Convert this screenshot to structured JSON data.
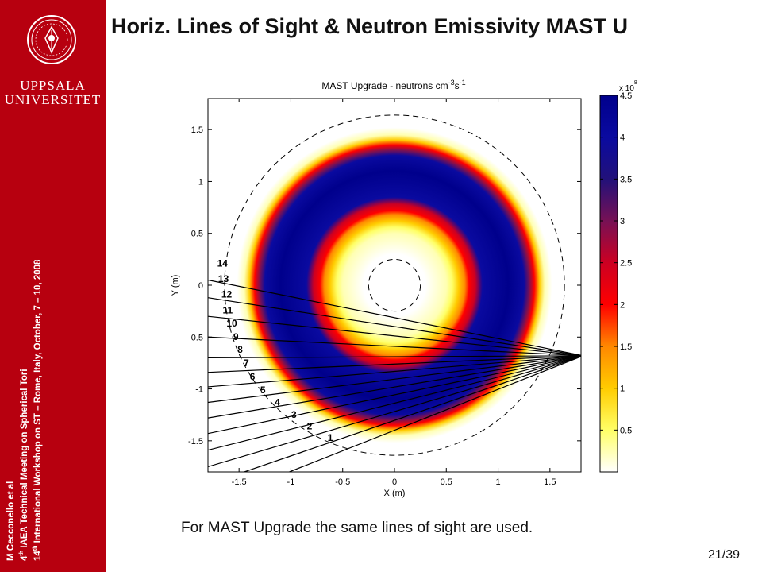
{
  "sidebar": {
    "logo_icon": "uppsala-seal-icon",
    "university_line1": "UPPSALA",
    "university_line2": "UNIVERSITET",
    "vertical_line1": "M Cecconello et al",
    "vertical_line2_num": "4",
    "vertical_line2_sup": "th",
    "vertical_line2_rest": " IAEA Technical Meeting on Spherical Tori",
    "vertical_line3_num": "14",
    "vertical_line3_sup": "th",
    "vertical_line3_rest": " International Workshop on ST – Rome, Italy, October, 7 – 10, 2008"
  },
  "slide": {
    "title": "Horiz. Lines of Sight & Neutron Emissivity MAST U",
    "caption": "For MAST Upgrade the same lines of sight are used.",
    "page_number": "21/39"
  },
  "chart_data": {
    "type": "heatmap",
    "title_main": "MAST Upgrade - neutrons cm",
    "title_exp1": "-3",
    "title_mid": "s",
    "title_exp2": "-1",
    "xlabel": "X (m)",
    "ylabel": "Y (m)",
    "xlim": [
      -1.8,
      1.8
    ],
    "ylim": [
      -1.8,
      1.8
    ],
    "xticks": [
      -1.5,
      -1,
      -0.5,
      0,
      0.5,
      1,
      1.5
    ],
    "xtick_labels": [
      "-1.5",
      "-1",
      "-0.5",
      "0",
      "0.5",
      "1",
      "1.5"
    ],
    "yticks": [
      1.5,
      1,
      0.5,
      0,
      -0.5,
      -1,
      -1.5
    ],
    "ytick_labels": [
      "1.5",
      "1",
      "0.5",
      "0",
      "-0.5",
      "-1",
      "-1.5"
    ],
    "emissivity_profile": {
      "center": [
        0,
        0
      ],
      "radius_m": [
        0.0,
        0.3,
        0.5,
        0.56,
        0.62,
        0.68,
        0.72,
        0.78,
        0.85,
        1.1,
        1.25,
        1.3,
        1.35,
        1.4,
        1.45,
        1.52
      ],
      "emissivity_1e8": [
        0.0,
        0.0,
        0.25,
        0.5,
        1.0,
        1.5,
        2.0,
        2.5,
        4.0,
        4.5,
        4.0,
        3.0,
        2.0,
        1.0,
        0.25,
        0.0
      ]
    },
    "boundaries": {
      "inner_radius_m": 0.25,
      "outer_radius_m": 1.64
    },
    "lines_of_sight": {
      "labels": [
        "1",
        "2",
        "3",
        "4",
        "5",
        "6",
        "7",
        "8",
        "9",
        "10",
        "11",
        "12",
        "13",
        "14"
      ],
      "source_point": [
        1.82,
        -0.68
      ],
      "left_edge_y": [
        -2.11,
        -1.92,
        -1.75,
        -1.59,
        -1.43,
        -1.28,
        -1.13,
        -0.98,
        -0.84,
        -0.7,
        -0.5,
        -0.3,
        -0.12,
        0.05
      ],
      "label_positions": [
        [
          -0.62,
          -1.5
        ],
        [
          -0.82,
          -1.39
        ],
        [
          -0.97,
          -1.28
        ],
        [
          -1.13,
          -1.16
        ],
        [
          -1.27,
          -1.04
        ],
        [
          -1.37,
          -0.91
        ],
        [
          -1.43,
          -0.78
        ],
        [
          -1.49,
          -0.65
        ],
        [
          -1.53,
          -0.53
        ],
        [
          -1.57,
          -0.4
        ],
        [
          -1.61,
          -0.27
        ],
        [
          -1.62,
          -0.12
        ],
        [
          -1.65,
          0.03
        ],
        [
          -1.66,
          0.18
        ]
      ]
    },
    "colorbar": {
      "multiplier_text": "x 10",
      "multiplier_exp": "8",
      "range": [
        0,
        4.5
      ],
      "ticks": [
        0.5,
        1,
        1.5,
        2,
        2.5,
        3,
        3.5,
        4,
        4.5
      ],
      "tick_labels": [
        "0.5",
        "1",
        "1.5",
        "2",
        "2.5",
        "3",
        "3.5",
        "4",
        "4.5"
      ],
      "colormap": [
        "#ffffff",
        "#ffff66",
        "#ffcc00",
        "#ff8800",
        "#ff0000",
        "#cc0022",
        "#771155",
        "#22117a",
        "#0a0aa0",
        "#00008c"
      ]
    }
  }
}
